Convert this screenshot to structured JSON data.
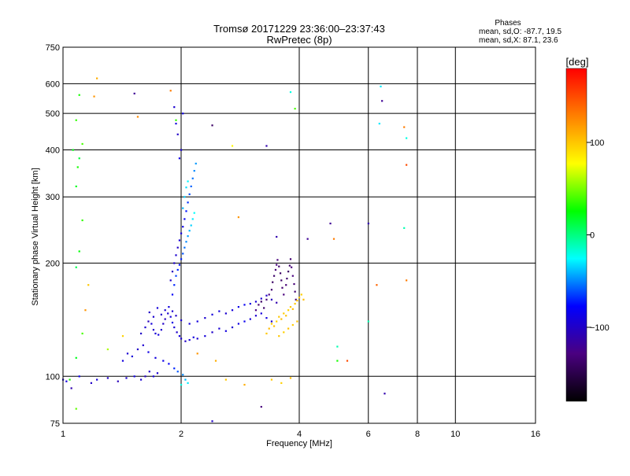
{
  "header": {
    "title_line1": "Tromsø 20171229 23:36:00–23:37:43",
    "title_line2": "RwPretec (8p)"
  },
  "stats": {
    "heading": "Phases",
    "o_line": "mean, sd,O:  -87.7, 19.5",
    "x_line": "mean, sd,X:  87.1, 23.6"
  },
  "colorbar": {
    "label": "[deg]",
    "min": -180,
    "max": 180,
    "ticks": [
      {
        "value": 100,
        "label": "100"
      },
      {
        "value": 0,
        "label": "0"
      },
      {
        "value": -100,
        "label": "−100"
      }
    ],
    "stops": [
      "#000000",
      "#4a0080",
      "#0000ff",
      "#00ffff",
      "#00ff00",
      "#ffff00",
      "#ff8000",
      "#ff0000"
    ]
  },
  "chart_data": {
    "type": "scatter",
    "xlabel": "Frequency [MHz]",
    "ylabel": "Stationary phase Virtual Height [km]",
    "xscale": "log",
    "yscale": "log",
    "xlim": [
      1,
      16
    ],
    "ylim": [
      75,
      750
    ],
    "xticks": [
      {
        "value": 1,
        "label": "1"
      },
      {
        "value": 2,
        "label": "2"
      },
      {
        "value": 4,
        "label": "4"
      },
      {
        "value": 6,
        "label": "6"
      },
      {
        "value": 8,
        "label": "8"
      },
      {
        "value": 10,
        "label": "10"
      },
      {
        "value": 16,
        "label": "16"
      }
    ],
    "yticks": [
      {
        "value": 75,
        "label": "75"
      },
      {
        "value": 100,
        "label": "100"
      },
      {
        "value": 200,
        "label": "200"
      },
      {
        "value": 300,
        "label": "300"
      },
      {
        "value": 400,
        "label": "400"
      },
      {
        "value": 500,
        "label": "500"
      },
      {
        "value": 600,
        "label": "600"
      },
      {
        "value": 750,
        "label": "750"
      }
    ],
    "grid": true,
    "color_scale": "phase [deg]",
    "points": [
      [
        1.0,
        98,
        -95
      ],
      [
        1.02,
        97,
        -90
      ],
      [
        1.05,
        93,
        -110
      ],
      [
        1.1,
        100,
        -85
      ],
      [
        1.18,
        96,
        -100
      ],
      [
        1.22,
        98,
        -92
      ],
      [
        1.3,
        99,
        -100
      ],
      [
        1.38,
        97,
        -105
      ],
      [
        1.45,
        99,
        -96
      ],
      [
        1.52,
        100,
        -88
      ],
      [
        1.58,
        98,
        -94
      ],
      [
        1.62,
        100,
        -102
      ],
      [
        1.66,
        103,
        -98
      ],
      [
        1.7,
        100,
        -90
      ],
      [
        1.74,
        102,
        -96
      ],
      [
        1.42,
        110,
        -90
      ],
      [
        1.46,
        115,
        -95
      ],
      [
        1.5,
        113,
        -92
      ],
      [
        1.55,
        118,
        -100
      ],
      [
        1.6,
        121,
        -96
      ],
      [
        1.65,
        116,
        -88
      ],
      [
        1.72,
        112,
        -90
      ],
      [
        1.8,
        110,
        -86
      ],
      [
        1.86,
        108,
        -80
      ],
      [
        1.92,
        105,
        -70
      ],
      [
        1.96,
        103,
        -60
      ],
      [
        2.02,
        101,
        -50
      ],
      [
        2.05,
        98,
        -40
      ],
      [
        2.08,
        96,
        -30
      ],
      [
        1.58,
        130,
        -100
      ],
      [
        1.62,
        135,
        -96
      ],
      [
        1.65,
        140,
        -104
      ],
      [
        1.68,
        138,
        -92
      ],
      [
        1.7,
        133,
        -98
      ],
      [
        1.72,
        130,
        -94
      ],
      [
        1.75,
        129,
        -90
      ],
      [
        1.78,
        133,
        -96
      ],
      [
        1.8,
        138,
        -100
      ],
      [
        1.82,
        142,
        -104
      ],
      [
        1.85,
        147,
        -96
      ],
      [
        1.88,
        144,
        -92
      ],
      [
        1.9,
        139,
        -88
      ],
      [
        1.92,
        135,
        -94
      ],
      [
        1.95,
        131,
        -98
      ],
      [
        1.98,
        128,
        -92
      ],
      [
        2.0,
        126,
        -96
      ],
      [
        2.05,
        124,
        -100
      ],
      [
        2.1,
        125,
        -94
      ],
      [
        2.15,
        127,
        -90
      ],
      [
        2.2,
        126,
        -96
      ],
      [
        2.3,
        128,
        -92
      ],
      [
        2.4,
        131,
        -98
      ],
      [
        2.5,
        134,
        -94
      ],
      [
        2.6,
        132,
        -90
      ],
      [
        2.7,
        135,
        -96
      ],
      [
        2.8,
        138,
        -88
      ],
      [
        2.9,
        140,
        -84
      ],
      [
        3.0,
        142,
        -90
      ],
      [
        3.1,
        145,
        -96
      ],
      [
        3.2,
        147,
        -92
      ],
      [
        3.3,
        143,
        -90
      ],
      [
        3.4,
        140,
        -96
      ],
      [
        1.66,
        148,
        -100
      ],
      [
        1.7,
        144,
        -96
      ],
      [
        1.74,
        152,
        -92
      ],
      [
        1.78,
        146,
        -98
      ],
      [
        1.82,
        150,
        -94
      ],
      [
        1.86,
        153,
        -90
      ],
      [
        1.9,
        149,
        -96
      ],
      [
        1.94,
        145,
        -100
      ],
      [
        2.0,
        141,
        -96
      ],
      [
        2.1,
        138,
        -92
      ],
      [
        2.2,
        140,
        -90
      ],
      [
        2.3,
        143,
        -96
      ],
      [
        2.4,
        146,
        -92
      ],
      [
        2.5,
        149,
        -90
      ],
      [
        2.6,
        147,
        -96
      ],
      [
        2.7,
        150,
        -92
      ],
      [
        2.8,
        153,
        -86
      ],
      [
        2.9,
        155,
        -82
      ],
      [
        3.0,
        156,
        -90
      ],
      [
        3.1,
        158,
        -94
      ],
      [
        3.2,
        161,
        -96
      ],
      [
        3.3,
        164,
        -100
      ],
      [
        3.4,
        160,
        -104
      ],
      [
        3.5,
        157,
        -110
      ],
      [
        1.9,
        165,
        -80
      ],
      [
        1.92,
        175,
        -70
      ],
      [
        1.94,
        185,
        -65
      ],
      [
        1.96,
        192,
        -70
      ],
      [
        1.98,
        198,
        -75
      ],
      [
        2.0,
        205,
        -70
      ],
      [
        2.02,
        212,
        -60
      ],
      [
        2.04,
        220,
        -55
      ],
      [
        2.06,
        228,
        -50
      ],
      [
        2.08,
        236,
        -45
      ],
      [
        2.1,
        244,
        -40
      ],
      [
        2.12,
        252,
        -35
      ],
      [
        2.14,
        262,
        -30
      ],
      [
        2.16,
        272,
        -25
      ],
      [
        1.88,
        180,
        -100
      ],
      [
        1.9,
        190,
        -104
      ],
      [
        1.92,
        200,
        -98
      ],
      [
        1.94,
        210,
        -96
      ],
      [
        1.96,
        220,
        -100
      ],
      [
        1.98,
        230,
        -94
      ],
      [
        2.0,
        240,
        -90
      ],
      [
        2.02,
        250,
        -86
      ],
      [
        2.04,
        262,
        -80
      ],
      [
        2.06,
        275,
        -74
      ],
      [
        2.08,
        290,
        -68
      ],
      [
        2.1,
        305,
        -62
      ],
      [
        2.12,
        320,
        -58
      ],
      [
        2.14,
        336,
        -54
      ],
      [
        2.16,
        352,
        -50
      ],
      [
        2.18,
        368,
        -46
      ],
      [
        2.02,
        280,
        -40
      ],
      [
        2.04,
        300,
        -36
      ],
      [
        2.06,
        318,
        -32
      ],
      [
        2.08,
        330,
        -28
      ],
      [
        1.98,
        380,
        -90
      ],
      [
        2.0,
        400,
        -95
      ],
      [
        1.96,
        440,
        -100
      ],
      [
        1.94,
        470,
        -92
      ],
      [
        1.92,
        520,
        -96
      ],
      [
        2.02,
        500,
        -88
      ],
      [
        3.1,
        150,
        -130
      ],
      [
        3.15,
        155,
        -135
      ],
      [
        3.2,
        158,
        -140
      ],
      [
        3.25,
        152,
        -138
      ],
      [
        3.3,
        160,
        -132
      ],
      [
        3.35,
        165,
        -128
      ],
      [
        3.4,
        170,
        -135
      ],
      [
        3.42,
        178,
        -140
      ],
      [
        3.45,
        185,
        -138
      ],
      [
        3.48,
        192,
        -132
      ],
      [
        3.5,
        198,
        -128
      ],
      [
        3.52,
        204,
        -130
      ],
      [
        3.55,
        196,
        -136
      ],
      [
        3.58,
        188,
        -140
      ],
      [
        3.6,
        180,
        -138
      ],
      [
        3.62,
        172,
        -134
      ],
      [
        3.65,
        165,
        -130
      ],
      [
        3.7,
        175,
        -132
      ],
      [
        3.72,
        182,
        -136
      ],
      [
        3.75,
        190,
        -140
      ],
      [
        3.78,
        197,
        -138
      ],
      [
        3.8,
        205,
        -134
      ],
      [
        3.82,
        195,
        -130
      ],
      [
        3.85,
        185,
        -128
      ],
      [
        3.88,
        176,
        -132
      ],
      [
        3.9,
        168,
        -136
      ],
      [
        3.92,
        160,
        -132
      ],
      [
        3.3,
        130,
        100
      ],
      [
        3.35,
        134,
        105
      ],
      [
        3.4,
        138,
        98
      ],
      [
        3.45,
        136,
        102
      ],
      [
        3.5,
        140,
        96
      ],
      [
        3.55,
        144,
        100
      ],
      [
        3.6,
        142,
        104
      ],
      [
        3.65,
        147,
        98
      ],
      [
        3.7,
        145,
        102
      ],
      [
        3.75,
        150,
        96
      ],
      [
        3.8,
        153,
        100
      ],
      [
        3.85,
        151,
        104
      ],
      [
        3.9,
        156,
        98
      ],
      [
        3.95,
        159,
        102
      ],
      [
        4.0,
        162,
        100
      ],
      [
        4.05,
        165,
        96
      ],
      [
        4.1,
        160,
        104
      ],
      [
        3.55,
        128,
        100
      ],
      [
        3.65,
        131,
        96
      ],
      [
        3.75,
        134,
        102
      ],
      [
        3.85,
        137,
        98
      ],
      [
        3.95,
        140,
        104
      ],
      [
        3.4,
        98,
        100
      ],
      [
        3.6,
        96,
        96
      ],
      [
        3.8,
        99,
        104
      ],
      [
        1.04,
        98,
        30
      ],
      [
        1.08,
        112,
        20
      ],
      [
        1.12,
        130,
        40
      ],
      [
        1.14,
        150,
        120
      ],
      [
        1.16,
        175,
        100
      ],
      [
        1.08,
        195,
        10
      ],
      [
        1.1,
        215,
        25
      ],
      [
        1.12,
        260,
        35
      ],
      [
        1.08,
        320,
        20
      ],
      [
        1.09,
        360,
        30
      ],
      [
        1.1,
        380,
        15
      ],
      [
        1.06,
        400,
        22
      ],
      [
        1.12,
        415,
        40
      ],
      [
        1.08,
        480,
        35
      ],
      [
        1.1,
        560,
        30
      ],
      [
        1.08,
        82,
        45
      ],
      [
        1.3,
        118,
        60
      ],
      [
        1.42,
        128,
        95
      ],
      [
        1.22,
        620,
        110
      ],
      [
        1.2,
        555,
        120
      ],
      [
        1.55,
        490,
        125
      ],
      [
        1.88,
        575,
        130
      ],
      [
        1.52,
        565,
        -120
      ],
      [
        1.94,
        480,
        35
      ],
      [
        2.4,
        465,
        -140
      ],
      [
        2.7,
        410,
        80
      ],
      [
        2.8,
        265,
        120
      ],
      [
        3.3,
        410,
        -110
      ],
      [
        3.5,
        235,
        -110
      ],
      [
        3.8,
        570,
        -20
      ],
      [
        3.9,
        515,
        40
      ],
      [
        4.2,
        232,
        -120
      ],
      [
        4.8,
        255,
        -120
      ],
      [
        4.9,
        232,
        130
      ],
      [
        5.0,
        120,
        -10
      ],
      [
        5.0,
        110,
        30
      ],
      [
        5.3,
        110,
        150
      ],
      [
        6.0,
        255,
        -110
      ],
      [
        6.0,
        140,
        -10
      ],
      [
        6.3,
        175,
        140
      ],
      [
        6.45,
        590,
        -30
      ],
      [
        6.5,
        540,
        -120
      ],
      [
        6.4,
        470,
        -30
      ],
      [
        6.6,
        90,
        -110
      ],
      [
        7.4,
        460,
        130
      ],
      [
        7.5,
        430,
        -20
      ],
      [
        7.5,
        365,
        150
      ],
      [
        7.4,
        248,
        -10
      ],
      [
        7.5,
        180,
        130
      ],
      [
        2.45,
        110,
        110
      ],
      [
        2.6,
        98,
        100
      ],
      [
        2.2,
        115,
        120
      ],
      [
        2.9,
        95,
        110
      ],
      [
        3.2,
        83,
        -130
      ],
      [
        2.0,
        95,
        -20
      ],
      [
        2.4,
        76,
        -100
      ]
    ]
  }
}
